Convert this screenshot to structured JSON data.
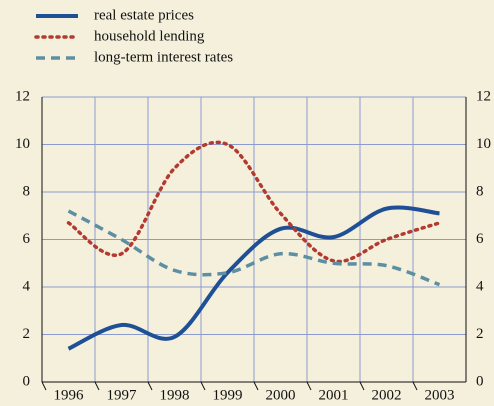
{
  "chart_data": {
    "type": "line",
    "categories": [
      "1996",
      "1997",
      "1998",
      "1999",
      "2000",
      "2001",
      "2002",
      "2003"
    ],
    "series": [
      {
        "name": "real estate prices",
        "color": "#1f4f94",
        "style": "solid",
        "values": [
          1.4,
          2.4,
          1.9,
          4.6,
          6.45,
          6.1,
          7.3,
          7.1
        ]
      },
      {
        "name": "household lending",
        "color": "#b23a30",
        "style": "dotted",
        "values": [
          6.7,
          5.4,
          9.0,
          10.0,
          7.1,
          5.1,
          6.0,
          6.7
        ]
      },
      {
        "name": "long-term interest rates",
        "color": "#5d8fa3",
        "style": "dashed",
        "values": [
          7.2,
          6.0,
          4.7,
          4.6,
          5.4,
          5.0,
          4.9,
          4.1
        ]
      }
    ],
    "ylim": [
      0,
      12
    ],
    "yticks": [
      0,
      2,
      4,
      6,
      8,
      10,
      12
    ],
    "grid": true
  }
}
